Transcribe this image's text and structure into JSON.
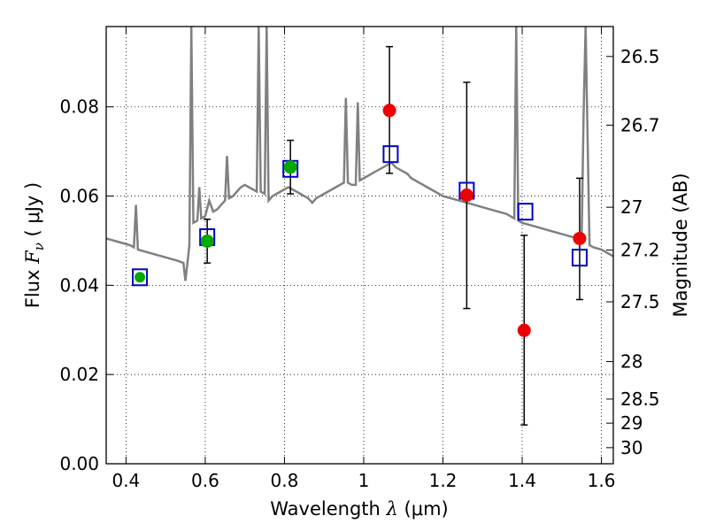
{
  "chart_data": {
    "type": "scatter",
    "xlabel_prefix": "Wavelength",
    "xlabel_symbol": "λ",
    "xlabel_unit": "(μm)",
    "ylabel_prefix": "Flux",
    "ylabel_symbol": "F",
    "ylabel_subscript": "ν",
    "ylabel_unit": "( μJy )",
    "y2label": "Magnitude (AB)",
    "xlim": [
      0.35,
      1.63
    ],
    "ylim": [
      0.0,
      0.098
    ],
    "grid": true,
    "x_ticks": [
      0.4,
      0.6,
      0.8,
      1.0,
      1.2,
      1.4,
      1.6
    ],
    "x_tick_labels": [
      "0.4",
      "0.6",
      "0.8",
      "1",
      "1.2",
      "1.4",
      "1.6"
    ],
    "y_ticks": [
      0.0,
      0.02,
      0.04,
      0.06,
      0.08
    ],
    "y_tick_labels": [
      "0.00",
      "0.02",
      "0.04",
      "0.06",
      "0.08"
    ],
    "y2_ticks": [
      {
        "label": "26.5",
        "flux": 0.0913
      },
      {
        "label": "26.7",
        "flux": 0.0759
      },
      {
        "label": "27",
        "flux": 0.0575
      },
      {
        "label": "27.2",
        "flux": 0.0479
      },
      {
        "label": "27.5",
        "flux": 0.0363
      },
      {
        "label": "28",
        "flux": 0.0229
      },
      {
        "label": "28.5",
        "flux": 0.0145
      },
      {
        "label": "29",
        "flux": 0.0091
      },
      {
        "label": "30",
        "flux": 0.0036
      }
    ],
    "model_spectrum": {
      "color": "#808080",
      "points": [
        [
          0.35,
          0.0505
        ],
        [
          0.37,
          0.05
        ],
        [
          0.39,
          0.0495
        ],
        [
          0.41,
          0.049
        ],
        [
          0.42,
          0.0485
        ],
        [
          0.425,
          0.058
        ],
        [
          0.43,
          0.048
        ],
        [
          0.45,
          0.0475
        ],
        [
          0.47,
          0.047
        ],
        [
          0.49,
          0.0465
        ],
        [
          0.51,
          0.046
        ],
        [
          0.53,
          0.0455
        ],
        [
          0.545,
          0.045
        ],
        [
          0.55,
          0.041
        ],
        [
          0.555,
          0.045
        ],
        [
          0.56,
          0.049
        ],
        [
          0.565,
          0.098
        ],
        [
          0.57,
          0.054
        ],
        [
          0.58,
          0.0545
        ],
        [
          0.585,
          0.062
        ],
        [
          0.59,
          0.055
        ],
        [
          0.6,
          0.0555
        ],
        [
          0.61,
          0.059
        ],
        [
          0.62,
          0.0565
        ],
        [
          0.63,
          0.057
        ],
        [
          0.64,
          0.058
        ],
        [
          0.65,
          0.059
        ],
        [
          0.655,
          0.069
        ],
        [
          0.66,
          0.0595
        ],
        [
          0.67,
          0.06
        ],
        [
          0.68,
          0.061
        ],
        [
          0.69,
          0.062
        ],
        [
          0.7,
          0.0625
        ],
        [
          0.71,
          0.062
        ],
        [
          0.72,
          0.0615
        ],
        [
          0.73,
          0.061
        ],
        [
          0.735,
          0.098
        ],
        [
          0.74,
          0.061
        ],
        [
          0.75,
          0.0605
        ],
        [
          0.755,
          0.098
        ],
        [
          0.76,
          0.059
        ],
        [
          0.77,
          0.06
        ],
        [
          0.78,
          0.0605
        ],
        [
          0.79,
          0.061
        ],
        [
          0.8,
          0.0615
        ],
        [
          0.81,
          0.062
        ],
        [
          0.82,
          0.0615
        ],
        [
          0.83,
          0.061
        ],
        [
          0.84,
          0.0605
        ],
        [
          0.85,
          0.06
        ],
        [
          0.86,
          0.0595
        ],
        [
          0.87,
          0.0585
        ],
        [
          0.88,
          0.0595
        ],
        [
          0.89,
          0.06
        ],
        [
          0.9,
          0.0605
        ],
        [
          0.91,
          0.061
        ],
        [
          0.92,
          0.0615
        ],
        [
          0.93,
          0.062
        ],
        [
          0.94,
          0.0625
        ],
        [
          0.95,
          0.063
        ],
        [
          0.955,
          0.082
        ],
        [
          0.96,
          0.063
        ],
        [
          0.97,
          0.0625
        ],
        [
          0.98,
          0.0625
        ],
        [
          0.985,
          0.081
        ],
        [
          0.99,
          0.0635
        ],
        [
          1.0,
          0.064
        ],
        [
          1.01,
          0.0645
        ],
        [
          1.02,
          0.065
        ],
        [
          1.03,
          0.0655
        ],
        [
          1.04,
          0.066
        ],
        [
          1.05,
          0.0665
        ],
        [
          1.06,
          0.067
        ],
        [
          1.07,
          0.0675
        ],
        [
          1.08,
          0.0665
        ],
        [
          1.09,
          0.066
        ],
        [
          1.1,
          0.0655
        ],
        [
          1.11,
          0.065
        ],
        [
          1.12,
          0.064
        ],
        [
          1.13,
          0.0635
        ],
        [
          1.14,
          0.063
        ],
        [
          1.15,
          0.0625
        ],
        [
          1.16,
          0.062
        ],
        [
          1.17,
          0.0615
        ],
        [
          1.18,
          0.061
        ],
        [
          1.19,
          0.0605
        ],
        [
          1.2,
          0.06
        ],
        [
          1.22,
          0.0595
        ],
        [
          1.24,
          0.059
        ],
        [
          1.26,
          0.0585
        ],
        [
          1.28,
          0.058
        ],
        [
          1.3,
          0.0575
        ],
        [
          1.32,
          0.057
        ],
        [
          1.34,
          0.0565
        ],
        [
          1.36,
          0.056
        ],
        [
          1.37,
          0.0555
        ],
        [
          1.38,
          0.055
        ],
        [
          1.385,
          0.098
        ],
        [
          1.39,
          0.0545
        ],
        [
          1.4,
          0.054
        ],
        [
          1.42,
          0.0535
        ],
        [
          1.44,
          0.053
        ],
        [
          1.46,
          0.0525
        ],
        [
          1.48,
          0.052
        ],
        [
          1.5,
          0.0515
        ],
        [
          1.52,
          0.051
        ],
        [
          1.54,
          0.0505
        ],
        [
          1.55,
          0.05
        ],
        [
          1.555,
          0.078
        ],
        [
          1.56,
          0.098
        ],
        [
          1.57,
          0.049
        ],
        [
          1.58,
          0.0485
        ],
        [
          1.6,
          0.048
        ],
        [
          1.62,
          0.047
        ],
        [
          1.63,
          0.0465
        ]
      ]
    },
    "model_magnitudes": {
      "color": "#0000cc",
      "points": [
        {
          "x": 0.435,
          "y": 0.0418
        },
        {
          "x": 0.605,
          "y": 0.0508
        },
        {
          "x": 0.815,
          "y": 0.0661
        },
        {
          "x": 1.068,
          "y": 0.0694
        },
        {
          "x": 1.26,
          "y": 0.0612
        },
        {
          "x": 1.408,
          "y": 0.0565
        },
        {
          "x": 1.545,
          "y": 0.0462
        }
      ]
    },
    "observed_green": {
      "color": "#00aa00",
      "points": [
        {
          "x": 0.435,
          "y": 0.0418
        },
        {
          "x": 0.605,
          "y": 0.0499,
          "err_low": 0.045,
          "err_high": 0.0548
        },
        {
          "x": 0.815,
          "y": 0.0665,
          "err_low": 0.0605,
          "err_high": 0.0725
        }
      ]
    },
    "observed_red": {
      "color": "#ee0000",
      "points": [
        {
          "x": 1.065,
          "y": 0.0792,
          "err_low": 0.0651,
          "err_high": 0.0935
        },
        {
          "x": 1.26,
          "y": 0.0602,
          "err_low": 0.0348,
          "err_high": 0.0855
        },
        {
          "x": 1.405,
          "y": 0.0299,
          "err_low": 0.0087,
          "err_high": 0.0512
        },
        {
          "x": 1.545,
          "y": 0.0505,
          "err_low": 0.0368,
          "err_high": 0.064
        }
      ]
    }
  }
}
